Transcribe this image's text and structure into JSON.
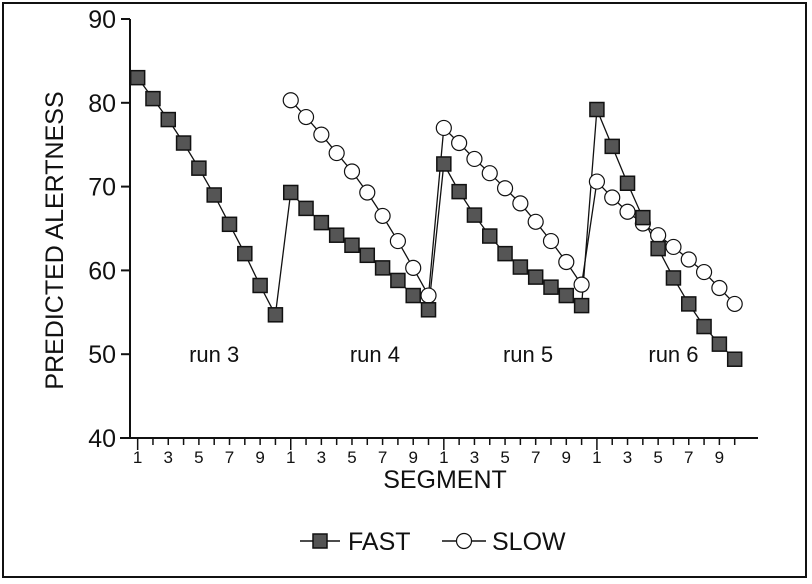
{
  "chart_data": {
    "type": "line",
    "title": "",
    "xlabel": "SEGMENT",
    "ylabel": "PREDICTED ALERTNESS",
    "ylim": [
      40,
      90
    ],
    "yticks": [
      40,
      50,
      60,
      70,
      80,
      90
    ],
    "x_tick_labels": [
      "1",
      "3",
      "5",
      "7",
      "9",
      "1",
      "3",
      "5",
      "7",
      "9",
      "1",
      "3",
      "5",
      "7",
      "9",
      "1",
      "3",
      "5",
      "7",
      "9"
    ],
    "x_tick_positions": [
      1,
      3,
      5,
      7,
      9,
      11,
      13,
      15,
      17,
      19,
      21,
      23,
      25,
      27,
      29,
      31,
      33,
      35,
      37,
      39
    ],
    "x_range": [
      0.5,
      41
    ],
    "grid": false,
    "legend": {
      "position": "bottom",
      "entries": [
        "FAST",
        "SLOW"
      ]
    },
    "annotations": [
      {
        "text": "run 3",
        "x": 6,
        "y": 50
      },
      {
        "text": "run 4",
        "x": 16.5,
        "y": 50
      },
      {
        "text": "run 5",
        "x": 26.5,
        "y": 50
      },
      {
        "text": "run 6",
        "x": 36,
        "y": 50
      }
    ],
    "series": [
      {
        "name": "FAST",
        "marker": "square",
        "color": "#111111",
        "points": [
          [
            1,
            83
          ],
          [
            2,
            80.5
          ],
          [
            3,
            78
          ],
          [
            4,
            75.2
          ],
          [
            5,
            72.2
          ],
          [
            6,
            69
          ],
          [
            7,
            65.5
          ],
          [
            8,
            62
          ],
          [
            9,
            58.2
          ],
          [
            10,
            54.7
          ],
          [
            11,
            69.3
          ],
          [
            12,
            67.4
          ],
          [
            13,
            65.7
          ],
          [
            14,
            64.2
          ],
          [
            15,
            63
          ],
          [
            16,
            61.8
          ],
          [
            17,
            60.3
          ],
          [
            18,
            58.8
          ],
          [
            19,
            57
          ],
          [
            20,
            55.3
          ],
          [
            21,
            72.7
          ],
          [
            22,
            69.4
          ],
          [
            23,
            66.6
          ],
          [
            24,
            64.1
          ],
          [
            25,
            62
          ],
          [
            26,
            60.4
          ],
          [
            27,
            59.2
          ],
          [
            28,
            58
          ],
          [
            29,
            57
          ],
          [
            30,
            55.8
          ],
          [
            31,
            79.2
          ],
          [
            32,
            74.8
          ],
          [
            33,
            70.4
          ],
          [
            34,
            66.3
          ],
          [
            35,
            62.6
          ],
          [
            36,
            59.1
          ],
          [
            37,
            56
          ],
          [
            38,
            53.3
          ],
          [
            39,
            51.2
          ],
          [
            40,
            49.4
          ]
        ]
      },
      {
        "name": "SLOW",
        "marker": "circle",
        "color": "#111111",
        "points": [
          [
            11,
            80.3
          ],
          [
            12,
            78.3
          ],
          [
            13,
            76.2
          ],
          [
            14,
            74
          ],
          [
            15,
            71.8
          ],
          [
            16,
            69.3
          ],
          [
            17,
            66.5
          ],
          [
            18,
            63.5
          ],
          [
            19,
            60.3
          ],
          [
            20,
            57
          ],
          [
            21,
            77
          ],
          [
            22,
            75.2
          ],
          [
            23,
            73.3
          ],
          [
            24,
            71.6
          ],
          [
            25,
            69.8
          ],
          [
            26,
            68
          ],
          [
            27,
            65.8
          ],
          [
            28,
            63.5
          ],
          [
            29,
            61
          ],
          [
            30,
            58.3
          ],
          [
            31,
            70.6
          ],
          [
            32,
            68.7
          ],
          [
            33,
            67
          ],
          [
            34,
            65.6
          ],
          [
            35,
            64.2
          ],
          [
            36,
            62.8
          ],
          [
            37,
            61.3
          ],
          [
            38,
            59.8
          ],
          [
            39,
            57.9
          ],
          [
            40,
            56
          ]
        ]
      }
    ]
  }
}
